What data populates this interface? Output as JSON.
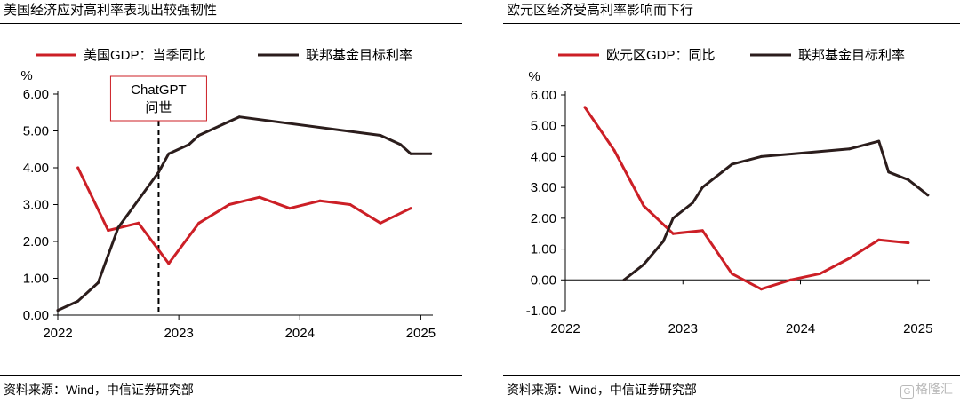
{
  "chart_data": [
    {
      "type": "line",
      "title": "美国经济应对高利率表现出较强韧性",
      "source": "资料来源：Wind，中信证券研究部",
      "ylabel": "%",
      "ylim": [
        0,
        6
      ],
      "yticks": [
        "0.00",
        "1.00",
        "2.00",
        "3.00",
        "4.00",
        "5.00",
        "6.00"
      ],
      "xlim": [
        2022.0,
        2025.1
      ],
      "xticks": [
        "2022",
        "2023",
        "2024",
        "2025"
      ],
      "legend_position": "top",
      "series": [
        {
          "name": "美国GDP：当季同比",
          "color": "#cc1f26",
          "x": [
            "2022-03",
            "2022-06",
            "2022-09",
            "2022-12",
            "2023-03",
            "2023-06",
            "2023-09",
            "2023-12",
            "2024-03",
            "2024-06",
            "2024-09",
            "2024-12"
          ],
          "y": [
            4.0,
            2.3,
            2.5,
            1.4,
            2.5,
            3.0,
            3.2,
            2.9,
            3.1,
            3.0,
            2.5,
            2.9
          ]
        },
        {
          "name": "联邦基金目标利率",
          "color": "#2b1d1c",
          "step": true,
          "x": [
            "2022-01",
            "2022-03",
            "2022-05",
            "2022-06",
            "2022-07",
            "2022-09",
            "2022-11",
            "2022-12",
            "2023-02",
            "2023-03",
            "2023-05",
            "2023-07",
            "2024-09",
            "2024-11",
            "2024-12",
            "2025-02"
          ],
          "y": [
            0.13,
            0.38,
            0.88,
            1.63,
            2.38,
            3.13,
            3.88,
            4.38,
            4.63,
            4.88,
            5.13,
            5.38,
            4.88,
            4.63,
            4.38,
            4.38
          ]
        }
      ],
      "annotation": {
        "text_line1": "ChatGPT",
        "text_line2": "问世",
        "x": "2022-11"
      }
    },
    {
      "type": "line",
      "title": "欧元区经济受高利率影响而下行",
      "source": "资料来源：Wind，中信证券研究部",
      "ylabel": "%",
      "ylim": [
        -1,
        6
      ],
      "yticks": [
        "-1.00",
        "0.00",
        "1.00",
        "2.00",
        "3.00",
        "4.00",
        "5.00",
        "6.00"
      ],
      "xlim": [
        2022.0,
        2025.1
      ],
      "xticks": [
        "2022",
        "2023",
        "2024",
        "2025"
      ],
      "legend_position": "top",
      "series": [
        {
          "name": "欧元区GDP：同比",
          "color": "#cc1f26",
          "x": [
            "2022-03",
            "2022-06",
            "2022-09",
            "2022-12",
            "2023-03",
            "2023-06",
            "2023-09",
            "2023-12",
            "2024-03",
            "2024-06",
            "2024-09",
            "2024-12"
          ],
          "y": [
            5.6,
            4.2,
            2.4,
            1.5,
            1.6,
            0.2,
            -0.3,
            0.0,
            0.2,
            0.7,
            1.3,
            1.2
          ]
        },
        {
          "name": "联邦基金目标利率",
          "color": "#2b1d1c",
          "step": true,
          "x": [
            "2022-07",
            "2022-09",
            "2022-11",
            "2022-12",
            "2023-02",
            "2023-03",
            "2023-05",
            "2023-06",
            "2023-09",
            "2024-06",
            "2024-09",
            "2024-10",
            "2024-12",
            "2025-01",
            "2025-02"
          ],
          "y": [
            0.0,
            0.5,
            1.25,
            2.0,
            2.5,
            3.0,
            3.5,
            3.75,
            4.0,
            4.25,
            4.5,
            3.5,
            3.25,
            3.0,
            2.75
          ]
        }
      ]
    }
  ],
  "watermark": {
    "glyph": "G",
    "text": "格隆汇"
  }
}
